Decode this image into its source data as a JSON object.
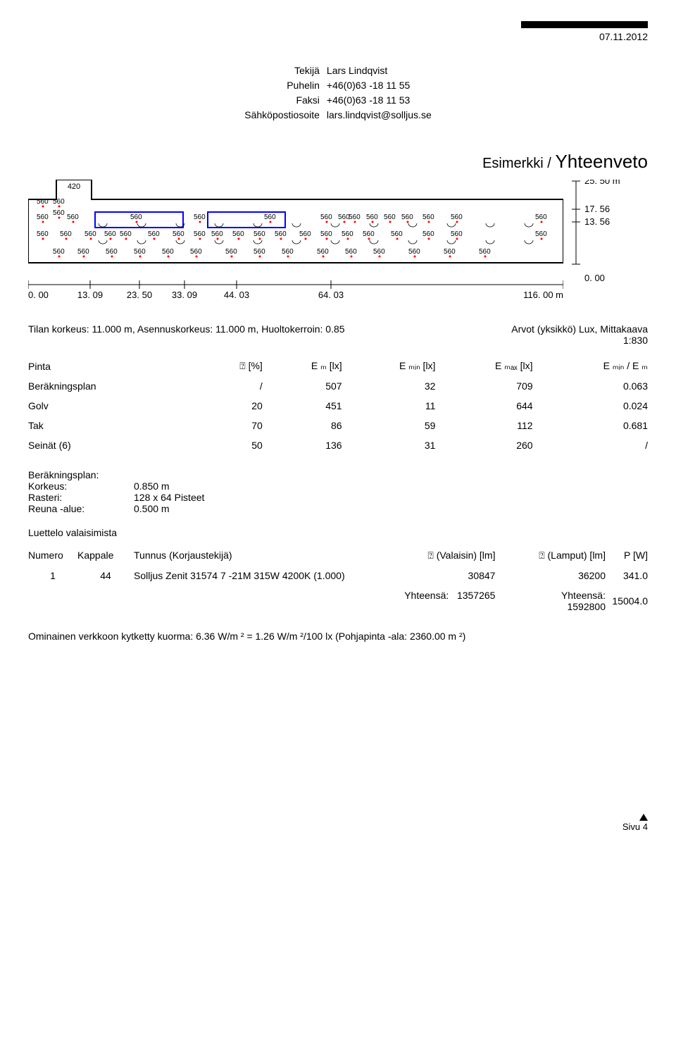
{
  "header": {
    "date": "07.11.2012",
    "labels": {
      "author": "Tekijä",
      "phone": "Puhelin",
      "fax": "Faksi",
      "email": "Sähköpostiosoite"
    },
    "values": {
      "author": "Lars Lindqvist",
      "phone": "+46(0)63 -18 11 55",
      "fax": "+46(0)63 -18 11 53",
      "email": "lars.lindqvist@solljus.se"
    }
  },
  "title": {
    "prefix": "Esimerkki /",
    "main": "Yhteenveto"
  },
  "diagram": {
    "top_value": "420",
    "cell_value": "560",
    "outer_stroke": "#000000",
    "fixture_fill": "#ffffff",
    "fixture_stroke": "#000000",
    "point_fill": "#ff0000",
    "blue_stroke": "#0000ff",
    "hscale": {
      "ticks": [
        "0. 00",
        "13. 09",
        "23. 50",
        "33. 09",
        "44. 03",
        "64. 03",
        "116. 00 m"
      ],
      "positions": [
        0,
        88,
        158,
        222,
        296,
        430,
        760
      ]
    },
    "vscale": {
      "top": "25. 50 m",
      "mid1": "17. 56",
      "mid2": "13. 56",
      "bottom": "0. 00"
    }
  },
  "desc": {
    "left": "Tilan korkeus: 11.000 m, Asennuskorkeus: 11.000 m, Huoltokerroin: 0.85",
    "right1": "Arvot (yksikkö) Lux, Mittakaava",
    "right2": "1:830"
  },
  "surf_table": {
    "headers": [
      "Pinta",
      "⍰ [%]",
      "E ₘ [lx]",
      "E ₘᵢₙ [lx]",
      "E ₘₐₓ [lx]",
      "E ₘᵢₙ / E ₘ"
    ],
    "rows": [
      [
        "Beräkningsplan",
        "/",
        "507",
        "32",
        "709",
        "0.063"
      ],
      [
        "Golv",
        "20",
        "451",
        "11",
        "644",
        "0.024"
      ],
      [
        "Tak",
        "70",
        "86",
        "59",
        "112",
        "0.681"
      ],
      [
        "Seinät (6)",
        "50",
        "136",
        "31",
        "260",
        "/"
      ]
    ]
  },
  "plan_info": {
    "heading": "Beräkningsplan:",
    "rows": [
      {
        "k": "Korkeus:",
        "v": "0.850 m"
      },
      {
        "k": "Rasteri:",
        "v": "128 x 64 Pisteet"
      },
      {
        "k": "Reuna  -alue:",
        "v": "0.500 m"
      }
    ]
  },
  "fixtures": {
    "heading": "Luettelo valaisimista",
    "headers": [
      "Numero",
      "Kappale",
      "Tunnus (Korjaustekijä)",
      "⍰ (Valaisin) [lm]",
      "⍰ (Lamput) [lm]",
      "P [W]"
    ],
    "row": {
      "numero": "1",
      "kappale": "44",
      "tunnus": "Solljus Zenit 31574 7   -21M 315W 4200K (1.000)",
      "valaisin_lm": "30847",
      "lamput_lm": "36200",
      "p_w": "341.0"
    },
    "totals": {
      "label": "Yhteensä:",
      "valaisin_sum": "1357265",
      "lamput_label": "Yhteensä:",
      "lamput_sum": "1592800",
      "p_sum": "15004.0"
    }
  },
  "load_line": "Ominainen verkkoon kytketty kuorma: 6.36 W/m    ² = 1.26 W/m ²/100 lx (Pohjapinta   -ala: 2360.00 m   ²)",
  "footer": {
    "page": "Sivu 4"
  }
}
